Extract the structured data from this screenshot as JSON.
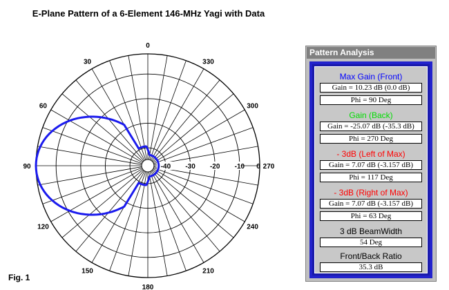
{
  "title": "E-Plane Pattern of a 6-Element 146-MHz Yagi with Data",
  "figure_label": "Fig. 1",
  "polar_plot": {
    "angle_labels": [
      "0",
      "30",
      "60",
      "90",
      "120",
      "150",
      "180",
      "210",
      "240",
      "270",
      "300",
      "330"
    ],
    "radial_labels": [
      "-40",
      "-30",
      "-20",
      "-10",
      "0"
    ],
    "pattern_color": "#1a1aee",
    "main_lobe_direction_deg": 90,
    "max_gain_db": 10.23
  },
  "panel": {
    "title": "Pattern Analysis",
    "sections": [
      {
        "header": "Max Gain (Front)",
        "header_color": "#0000ff",
        "value1": "Gain = 10.23 dB  (0.0 dB)",
        "value2": "Phi = 90 Deg"
      },
      {
        "header": "Gain (Back)",
        "header_color": "#00dd00",
        "value1": "Gain = -25.07 dB  (-35.3 dB)",
        "value2": "Phi = 270 Deg"
      },
      {
        "header": "- 3dB (Left of Max)",
        "header_color": "#ff0000",
        "value1": "Gain = 7.07 dB  (-3.157 dB)",
        "value2": "Phi = 117 Deg"
      },
      {
        "header": "- 3dB (Right of Max)",
        "header_color": "#ff0000",
        "value1": "Gain = 7.07 dB  (-3.157 dB)",
        "value2": "Phi = 63 Deg"
      }
    ],
    "beamwidth_label": "3 dB BeamWidth",
    "beamwidth_value": "54 Deg",
    "fb_label": "Front/Back Ratio",
    "fb_value": "35.3 dB"
  }
}
